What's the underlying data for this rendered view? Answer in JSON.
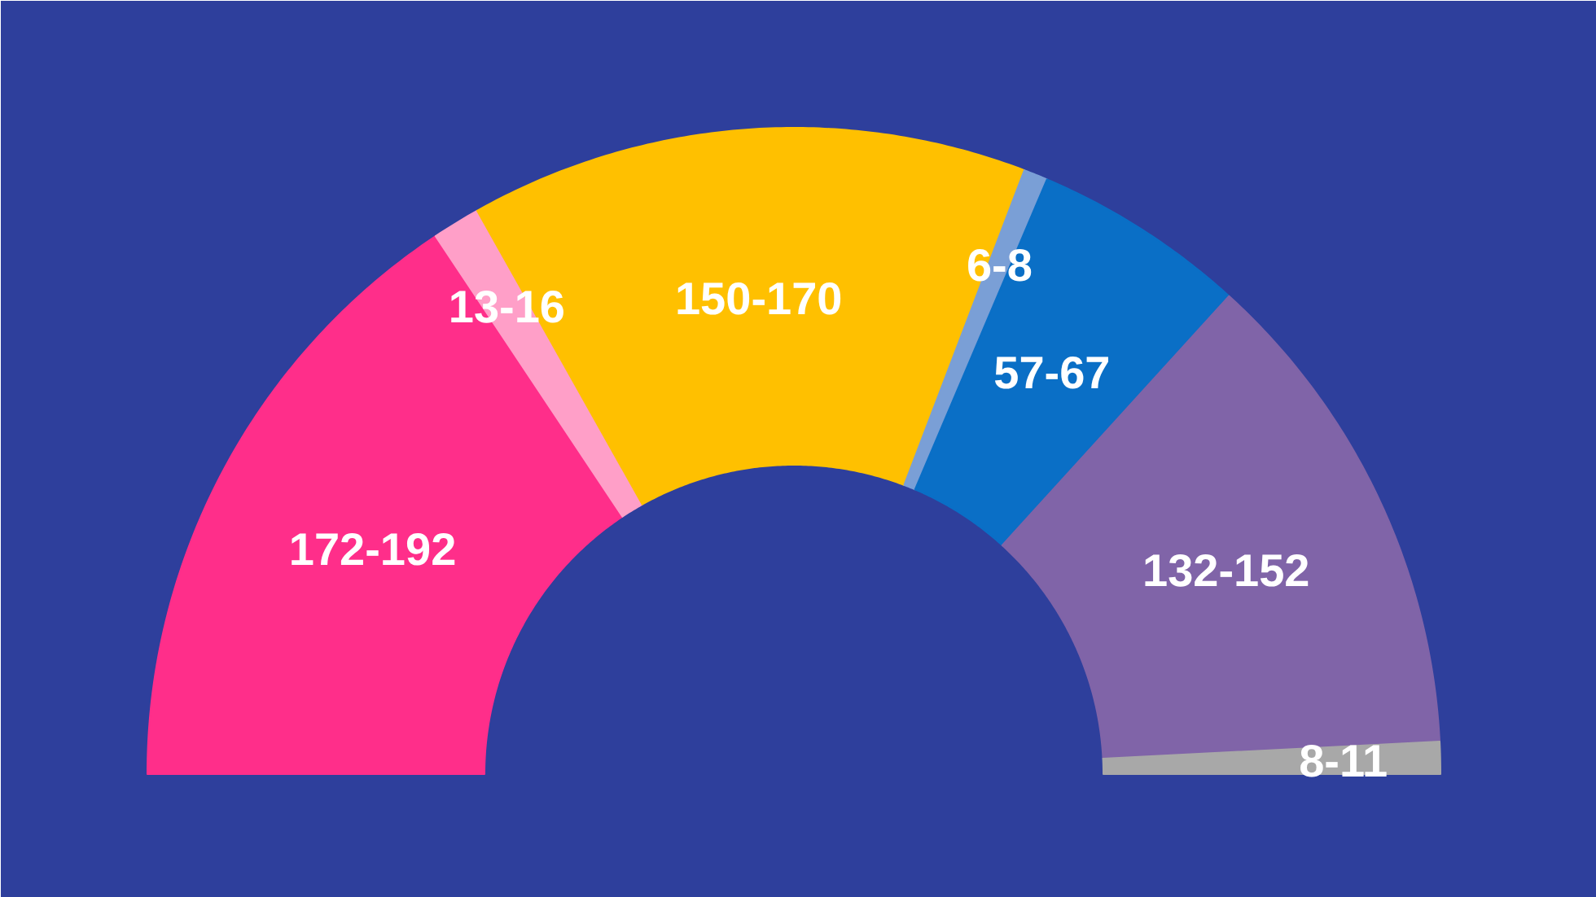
{
  "chart_data": {
    "type": "donut",
    "categories": [
      null,
      null,
      null,
      null,
      null,
      null,
      null
    ],
    "values": [
      31.3,
      2.4,
      27.9,
      1.2,
      10.7,
      24.9,
      1.6
    ],
    "colors": [
      "#ff2e8a",
      "#ff9fc8",
      "#ffc000",
      "#7a9fd6",
      "#0a6fc6",
      "#8064a8",
      "#a8a8a8"
    ],
    "value_labels": [
      "172-192",
      "13-16",
      "150-170",
      "6-8",
      "57-67",
      "132-152",
      "8-11"
    ]
  }
}
